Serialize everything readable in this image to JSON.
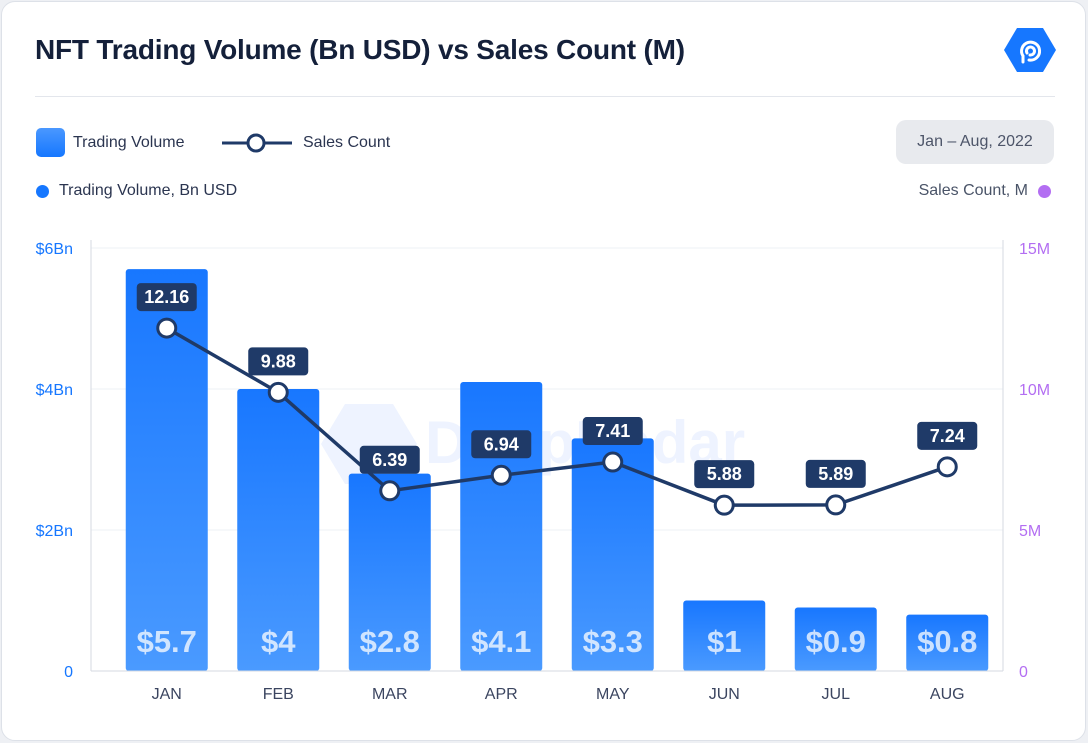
{
  "header": {
    "title": "NFT Trading Volume (Bn USD) vs Sales Count (M)",
    "logo_icon": "dappradar-hex-logo-icon"
  },
  "legend": {
    "bar_label": "Trading Volume",
    "line_label": "Sales Count"
  },
  "period_label": "Jan – Aug, 2022",
  "axis_titles": {
    "left": "Trading Volume, Bn USD",
    "right": "Sales Count, M"
  },
  "watermark": "DappRadar",
  "colors": {
    "bar_top": "#4a98ff",
    "bar_bottom": "#1677ff",
    "line": "#1f3a68",
    "left_axis": "#1677ff",
    "right_axis": "#b36ef2",
    "label_box": "#1f3a68"
  },
  "chart_data": {
    "type": "bar",
    "title": "NFT Trading Volume (Bn USD) vs Sales Count (M)",
    "categories": [
      "JAN",
      "FEB",
      "MAR",
      "APR",
      "MAY",
      "JUN",
      "JUL",
      "AUG"
    ],
    "series": [
      {
        "name": "Trading Volume",
        "type": "bar",
        "axis": "left",
        "values": [
          5.7,
          4.0,
          2.8,
          4.1,
          3.3,
          1.0,
          0.9,
          0.8
        ],
        "labels": [
          "$5.7",
          "$4",
          "$2.8",
          "$4.1",
          "$3.3",
          "$1",
          "$0.9",
          "$0.8"
        ]
      },
      {
        "name": "Sales Count",
        "type": "line",
        "axis": "right",
        "values": [
          12.16,
          9.88,
          6.39,
          6.94,
          7.41,
          5.88,
          5.89,
          7.24
        ],
        "labels": [
          "12.16",
          "9.88",
          "6.39",
          "6.94",
          "7.41",
          "5.88",
          "5.89",
          "7.24"
        ]
      }
    ],
    "y_left": {
      "label": "Trading Volume, Bn USD",
      "ylim": [
        0,
        6
      ],
      "ticks": [
        "0",
        "$2Bn",
        "$4Bn",
        "$6Bn"
      ]
    },
    "y_right": {
      "label": "Sales Count, M",
      "ylim": [
        0,
        15
      ],
      "ticks": [
        "0",
        "5M",
        "10M",
        "15M"
      ]
    },
    "grid": true,
    "legend_position": "top-left"
  }
}
